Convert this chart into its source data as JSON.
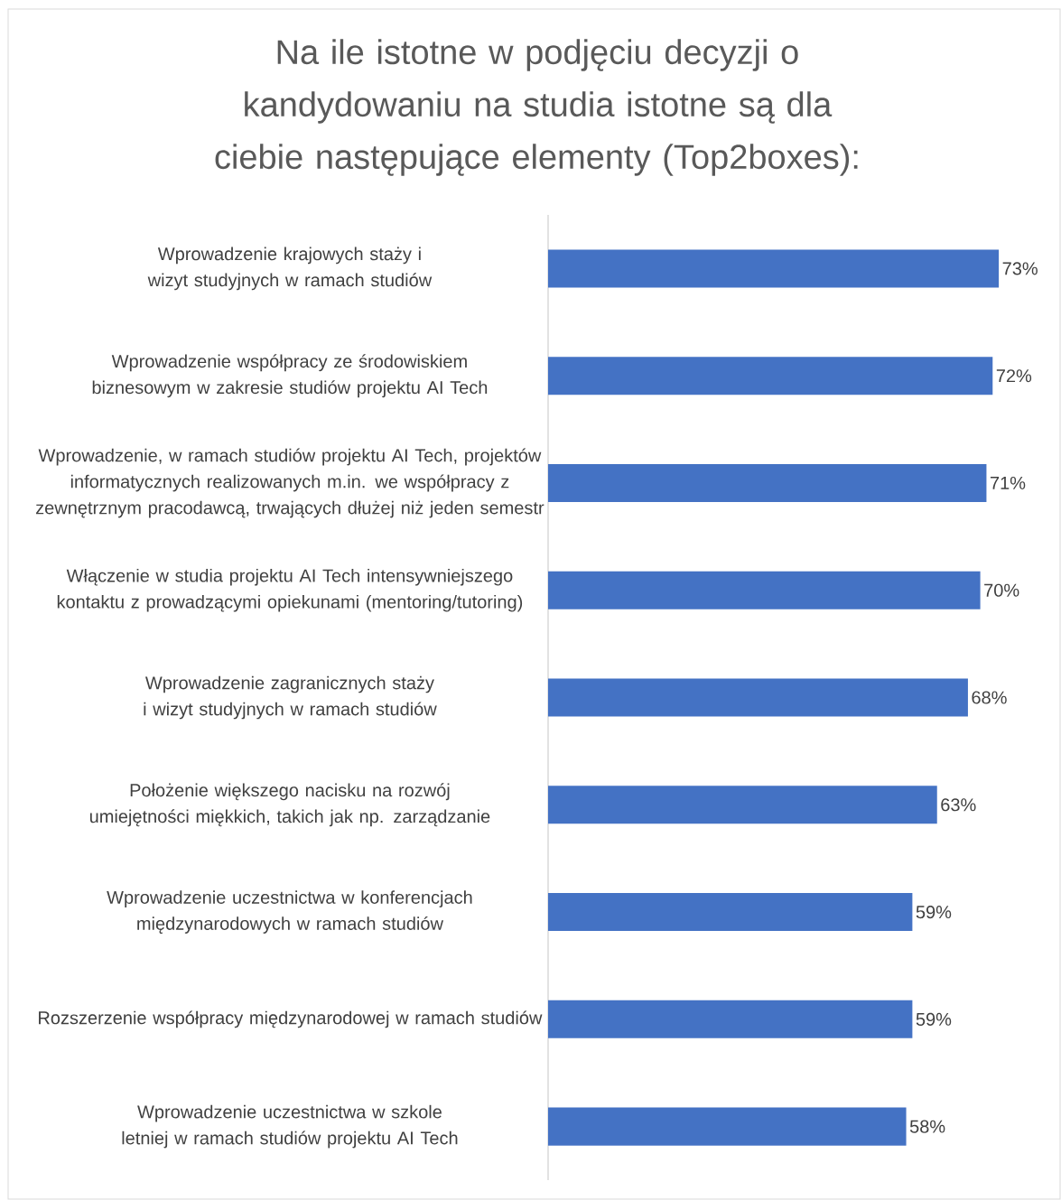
{
  "chart_data": {
    "type": "bar",
    "orientation": "horizontal",
    "color": "#4472c4",
    "title": "Na ile istotne w podjęciu decyzji o kandydowaniu na studia istotne są dla ciebie następujące elementy (Top2boxes):",
    "categories": [
      "Wprowadzenie krajowych staży i wizyt studyjnych w ramach studiów",
      "Wprowadzenie współpracy ze środowiskiem biznesowym w zakresie studiów projektu AI Tech",
      "Wprowadzenie, w ramach studiów projektu AI Tech, projektów informatycznych realizowanych m.in. we współpracy z zewnętrznym pracodawcą, trwających dłużej niż jeden semestr",
      "Włączenie w studia projektu AI Tech intensywniejszego kontaktu z prowadzącymi opiekunami (mentoring/tutoring)",
      "Wprowadzenie zagranicznych staży i wizyt studyjnych w ramach studiów",
      "Położenie większego nacisku na rozwój umiejętności miękkich, takich jak np. zarządzanie",
      "Wprowadzenie uczestnictwa w konferencjach międzynarodowych w ramach studiów",
      "Rozszerzenie współpracy międzynarodowej w ramach studiów",
      "Wprowadzenie uczestnictwa w szkole letniej w ramach studiów projektu AI Tech"
    ],
    "values": [
      73,
      72,
      71,
      70,
      68,
      63,
      59,
      59,
      58
    ],
    "value_labels": [
      "73%",
      "72%",
      "71%",
      "70%",
      "68%",
      "63%",
      "59%",
      "59%",
      "58%"
    ]
  }
}
